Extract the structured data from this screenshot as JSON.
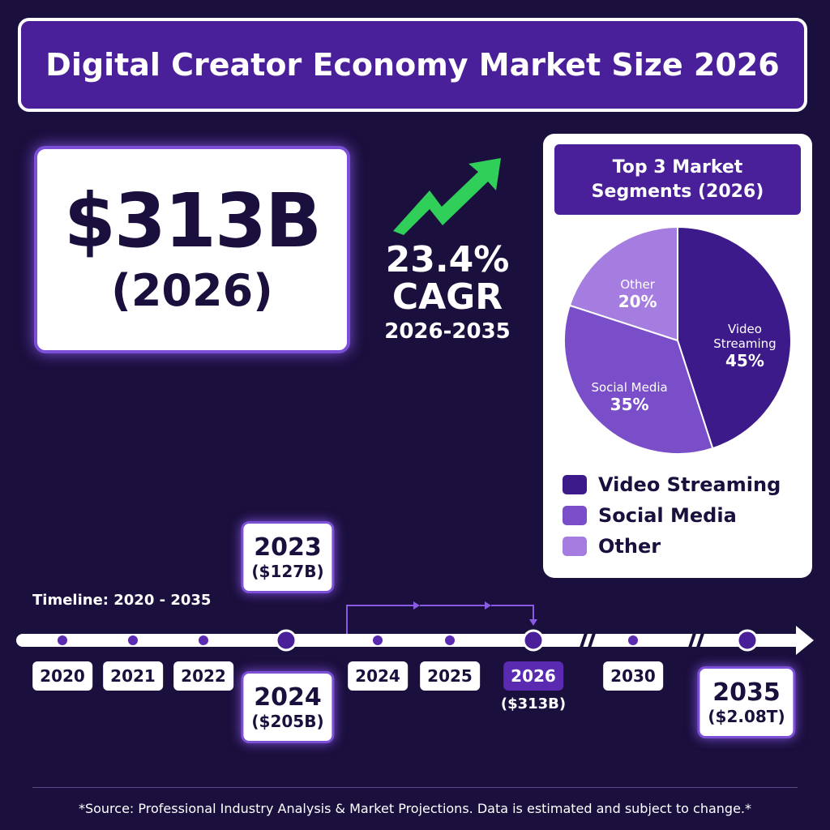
{
  "title": "Digital Creator Economy Market Size 2026",
  "headline": {
    "value": "$313B",
    "year": "(2026)"
  },
  "cagr": {
    "rate": "23.4%",
    "label": "CAGR",
    "period": "2026-2035"
  },
  "chart_data": {
    "type": "pie",
    "title": "Top 3 Market Segments (2026)",
    "categories": [
      "Video Streaming",
      "Social Media",
      "Other"
    ],
    "values": [
      45,
      35,
      20
    ],
    "value_labels": [
      "45%",
      "35%",
      "20%"
    ],
    "colors": [
      "#3d1a8a",
      "#7a4ec9",
      "#a57de0"
    ]
  },
  "timeline": {
    "label": "Timeline: 2020 - 2035",
    "ticks": [
      "2020",
      "2021",
      "2022",
      "2024",
      "2025",
      "2026",
      "2030"
    ],
    "highlight": {
      "year": "2026",
      "amount": "($313B)"
    },
    "callouts": [
      {
        "year": "2023",
        "amount": "($127B)"
      },
      {
        "year": "2024",
        "amount": "($205B)"
      },
      {
        "year": "2035",
        "amount": "($2.08T)"
      }
    ]
  },
  "footnote": "*Source: Professional Industry Analysis & Market Projections. Data is estimated and subject to change.*"
}
